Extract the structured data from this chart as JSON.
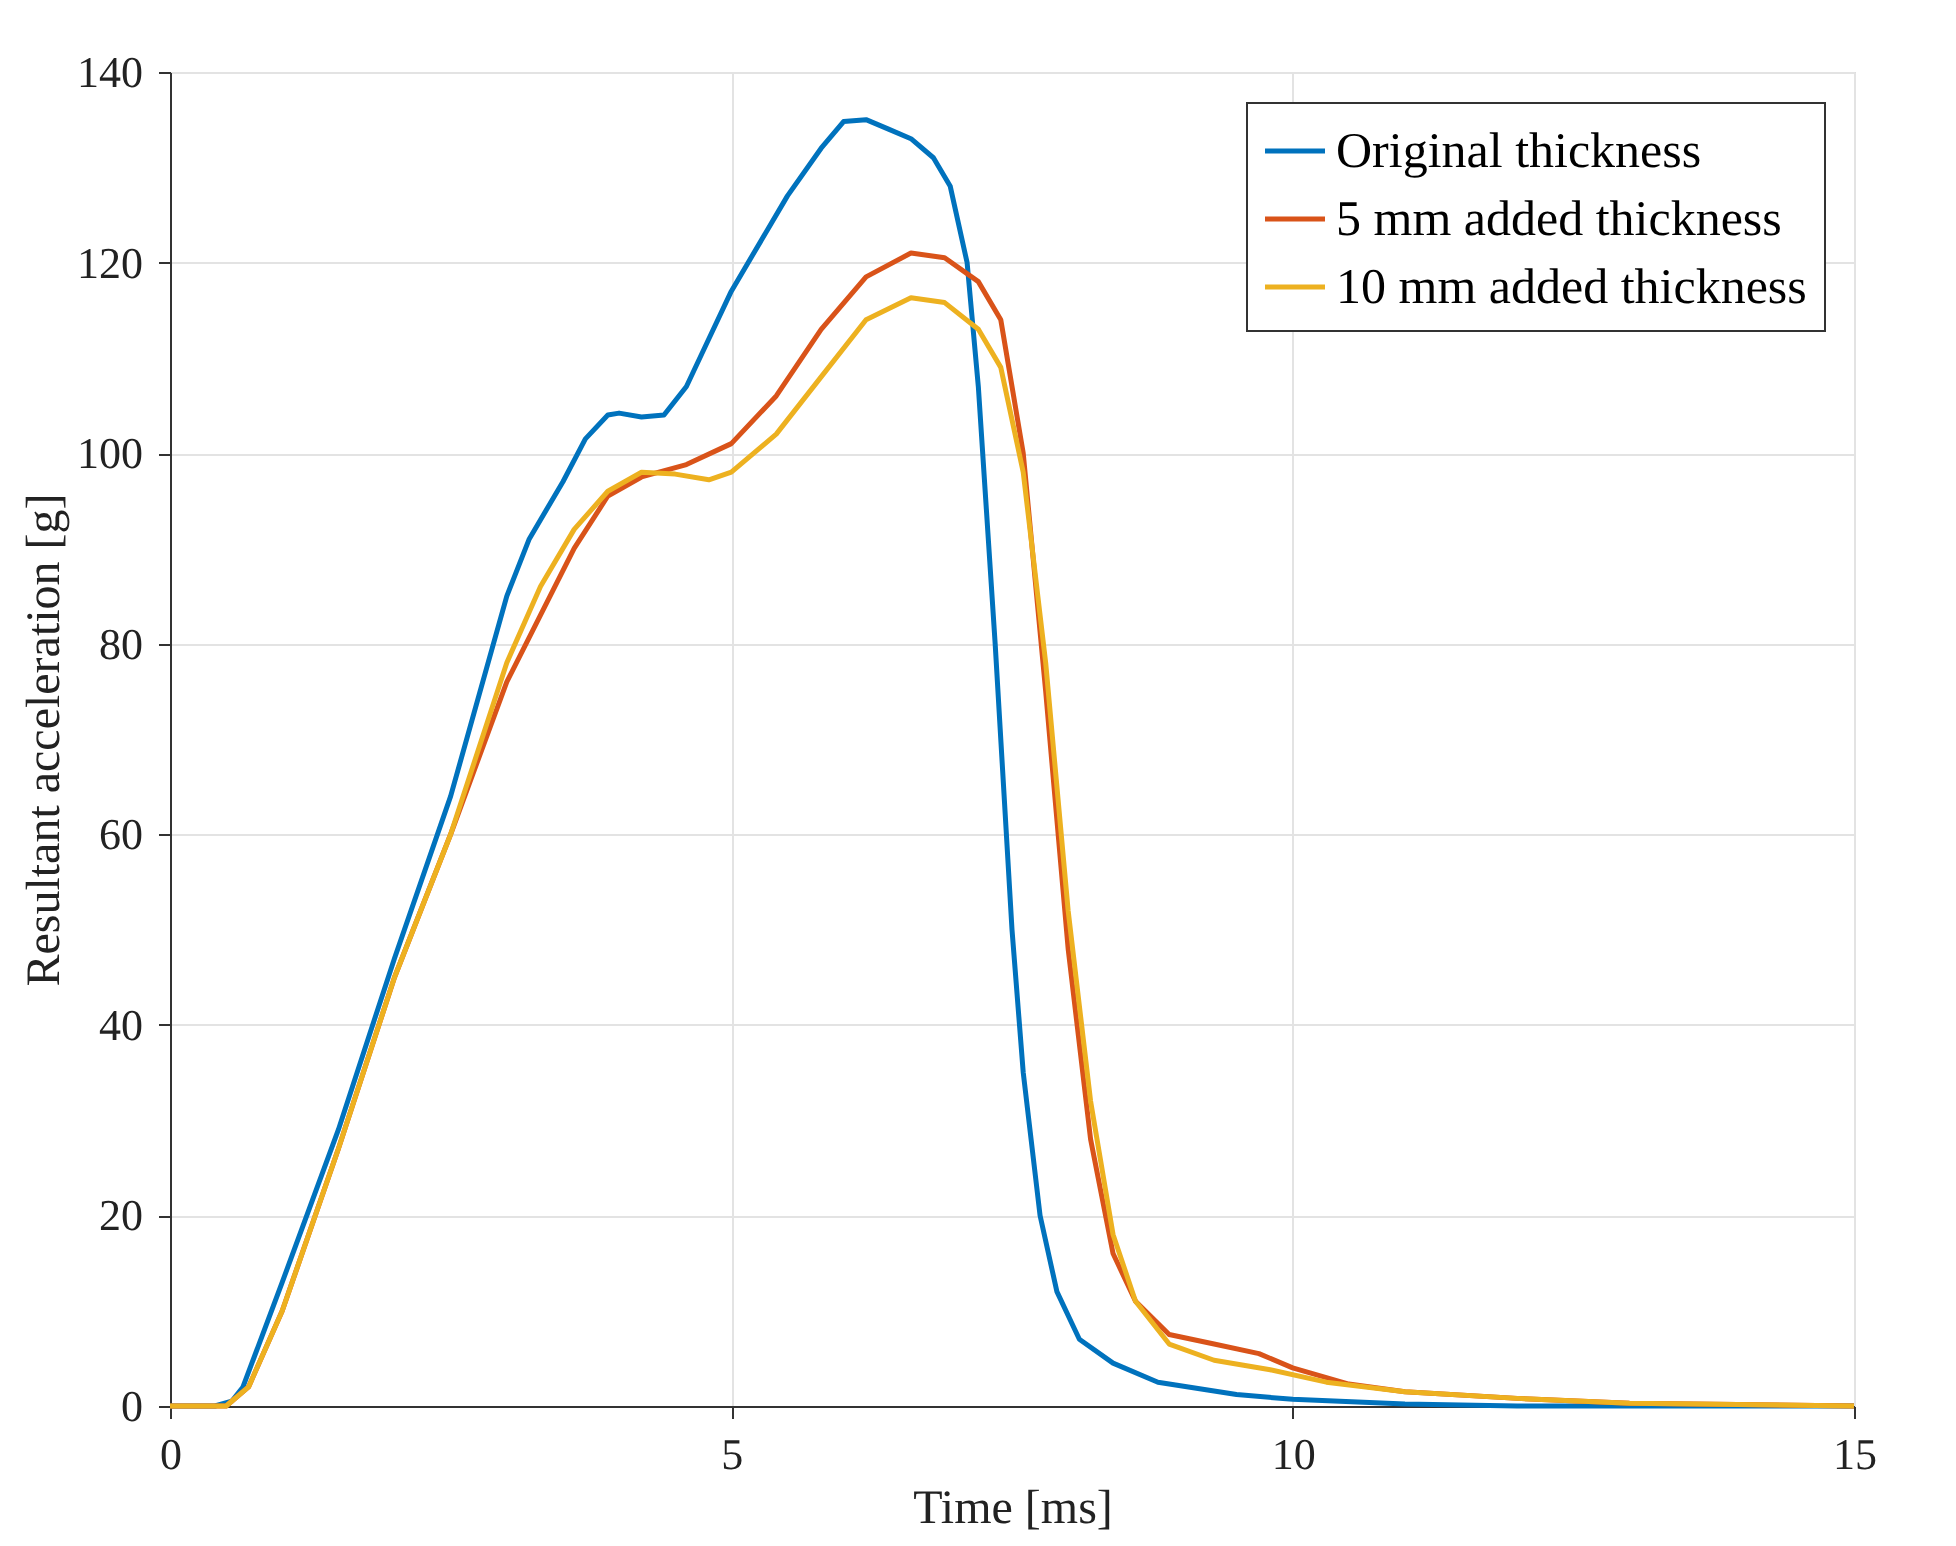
{
  "chart_data": {
    "type": "line",
    "xlabel": "Time [ms]",
    "ylabel": "Resultant acceleration [g]",
    "xlim": [
      0,
      15
    ],
    "xticks": [
      0,
      5,
      10,
      15
    ],
    "ylim": [
      0,
      140
    ],
    "yticks": [
      0,
      20,
      40,
      60,
      80,
      100,
      120,
      140
    ],
    "grid": true,
    "legend": "top right",
    "marker": "none",
    "line_style": "solid",
    "series": [
      {
        "name": "Original thickness",
        "color": "#0072bd",
        "x": [
          0,
          0.4,
          0.55,
          0.65,
          1.0,
          1.5,
          2.0,
          2.5,
          3.0,
          3.2,
          3.5,
          3.7,
          3.9,
          4.0,
          4.2,
          4.4,
          4.6,
          4.8,
          5.0,
          5.5,
          5.8,
          6.0,
          6.2,
          6.4,
          6.6,
          6.8,
          6.95,
          7.1,
          7.2,
          7.35,
          7.5,
          7.6,
          7.75,
          7.9,
          8.1,
          8.4,
          8.8,
          9.5,
          10,
          11,
          12,
          15
        ],
        "values": [
          0,
          0,
          0.5,
          2,
          13,
          29,
          47,
          64,
          85,
          91,
          97,
          101.5,
          104,
          104.2,
          103.8,
          104,
          107,
          112,
          117,
          127,
          132,
          134.8,
          135,
          134,
          133,
          131,
          128,
          120,
          107,
          80,
          50,
          35,
          20,
          12,
          7,
          4.5,
          2.5,
          1.2,
          0.7,
          0.2,
          0,
          0
        ]
      },
      {
        "name": "5 mm added thickness",
        "color": "#d95319",
        "x": [
          0,
          0.5,
          0.7,
          1.0,
          1.5,
          2.0,
          2.5,
          3.0,
          3.3,
          3.6,
          3.9,
          4.2,
          4.6,
          5.0,
          5.4,
          5.8,
          6.2,
          6.6,
          6.9,
          7.2,
          7.4,
          7.6,
          7.8,
          8.0,
          8.2,
          8.4,
          8.6,
          8.9,
          9.3,
          9.7,
          10.0,
          10.5,
          11.0,
          12,
          13,
          15
        ],
        "values": [
          0,
          0,
          2,
          10,
          27,
          45,
          60,
          76,
          83,
          90,
          95.5,
          97.5,
          98.8,
          101,
          106,
          113,
          118.5,
          121,
          120.5,
          118,
          114,
          100,
          75,
          48,
          28,
          16,
          11,
          7.5,
          6.5,
          5.5,
          4,
          2.3,
          1.5,
          0.8,
          0.3,
          0
        ]
      },
      {
        "name": "10 mm added thickness",
        "color": "#edb120",
        "x": [
          0,
          0.5,
          0.7,
          1.0,
          1.5,
          2,
          2.5,
          3.0,
          3.3,
          3.6,
          3.9,
          4.2,
          4.5,
          4.8,
          5.0,
          5.4,
          5.8,
          6.2,
          6.6,
          6.9,
          7.2,
          7.4,
          7.6,
          7.8,
          8.0,
          8.2,
          8.4,
          8.6,
          8.9,
          9.3,
          9.8,
          10.3,
          11,
          12,
          13,
          15
        ],
        "values": [
          0,
          0,
          2,
          10,
          27,
          45,
          60,
          78,
          86,
          92,
          96,
          98,
          97.8,
          97.2,
          98,
          102,
          108,
          114,
          116.3,
          115.8,
          113,
          109,
          98,
          78,
          52,
          32,
          18,
          11,
          6.5,
          4.8,
          3.8,
          2.5,
          1.5,
          0.8,
          0.3,
          0
        ]
      }
    ]
  }
}
